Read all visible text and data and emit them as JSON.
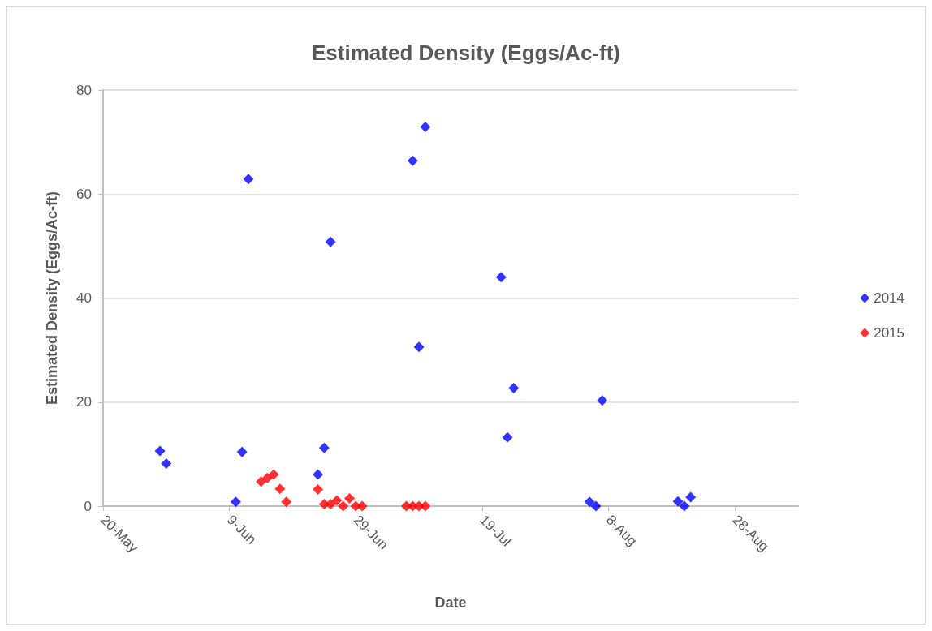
{
  "chart_data": {
    "type": "scatter",
    "title": "Estimated Density (Eggs/Ac-ft)",
    "xlabel": "Date",
    "ylabel": "Estimated Density (Eggs/Ac-ft)",
    "series": [
      {
        "name": "2014",
        "color": "#0000ff",
        "x": [
          "--05-29",
          "--05-30",
          "--06-10",
          "--06-11",
          "--06-12",
          "--06-23",
          "--06-24",
          "--06-25",
          "--07-08",
          "--07-09",
          "--07-10",
          "--07-22",
          "--07-23",
          "--07-24",
          "--08-05",
          "--08-06",
          "--08-07",
          "--08-19",
          "--08-20",
          "--08-21"
        ],
        "values": [
          10.6,
          8.2,
          0.8,
          10.4,
          62.9,
          6.1,
          11.2,
          50.8,
          66.4,
          30.6,
          72.9,
          44.0,
          13.2,
          22.7,
          0.8,
          0,
          20.3,
          0.9,
          0,
          1.7
        ]
      },
      {
        "name": "2015",
        "color": "#ff0000",
        "x": [
          "--06-14",
          "--06-15",
          "--06-16",
          "--06-17",
          "--06-18",
          "--06-23",
          "--06-24",
          "--06-25",
          "--06-26",
          "--06-27",
          "--06-28",
          "--06-29",
          "--06-30",
          "--07-07",
          "--07-08",
          "--07-09",
          "--07-10"
        ],
        "values": [
          4.7,
          5.4,
          6.1,
          3.3,
          0.8,
          3.2,
          0.4,
          0.4,
          1.1,
          0,
          1.5,
          0,
          0,
          0,
          0,
          0,
          0
        ]
      }
    ],
    "xlim": [
      "--05-20",
      "--09-07"
    ],
    "xticks": [
      {
        "value": "--05-20",
        "label": "20-May"
      },
      {
        "value": "--06-09",
        "label": "9-Jun"
      },
      {
        "value": "--06-29",
        "label": "29-Jun"
      },
      {
        "value": "--07-19",
        "label": "19-Jul"
      },
      {
        "value": "--08-08",
        "label": "8-Aug"
      },
      {
        "value": "--08-28",
        "label": "28-Aug"
      }
    ],
    "ylim": [
      0,
      80
    ],
    "yticks": [
      0,
      20,
      40,
      60,
      80
    ],
    "grid": "y",
    "legend": "right",
    "marker": "diamond"
  }
}
